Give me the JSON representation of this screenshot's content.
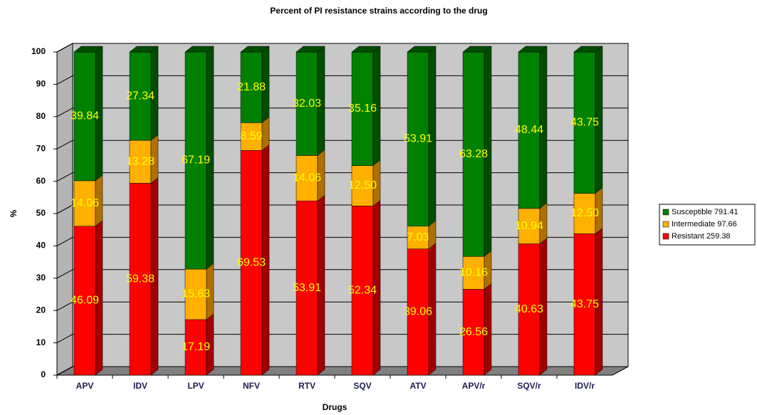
{
  "chart_data": {
    "type": "stacked_bar_3d",
    "title": "Percent of PI resistance strains according to the drug",
    "x_label": "Drugs",
    "y_label": "%",
    "categories": [
      "APV",
      "IDV",
      "LPV",
      "NFV",
      "RTV",
      "SQV",
      "ATV",
      "APV/r",
      "SQV/r",
      "IDV/r"
    ],
    "series": [
      {
        "name": "Resistant 259.38",
        "color": "#ff0000",
        "side_color": "#a00000",
        "values": [
          46.09,
          59.38,
          17.19,
          69.53,
          53.91,
          52.34,
          39.06,
          26.56,
          40.63,
          43.75
        ]
      },
      {
        "name": "Intermediate 97.66",
        "color": "#ffb000",
        "side_color": "#b07000",
        "values": [
          14.06,
          13.28,
          15.63,
          8.59,
          14.06,
          12.5,
          7.03,
          10.16,
          10.94,
          12.5
        ],
        "value_labels": [
          "14.06",
          "13.28",
          "15.63",
          "8.59",
          "14.06",
          "12.50",
          "7.03",
          "10.16",
          "10.94",
          "12.50"
        ]
      },
      {
        "name": "Susceptible 791.41",
        "color": "#008000",
        "side_color": "#004d00",
        "values": [
          39.84,
          27.34,
          67.19,
          21.88,
          32.03,
          35.16,
          53.91,
          63.28,
          48.44,
          43.75
        ]
      }
    ],
    "ylim": [
      0,
      100
    ],
    "yticks": [
      0,
      10,
      20,
      30,
      40,
      50,
      60,
      70,
      80,
      90,
      100
    ],
    "grid": true,
    "legend": "right"
  }
}
